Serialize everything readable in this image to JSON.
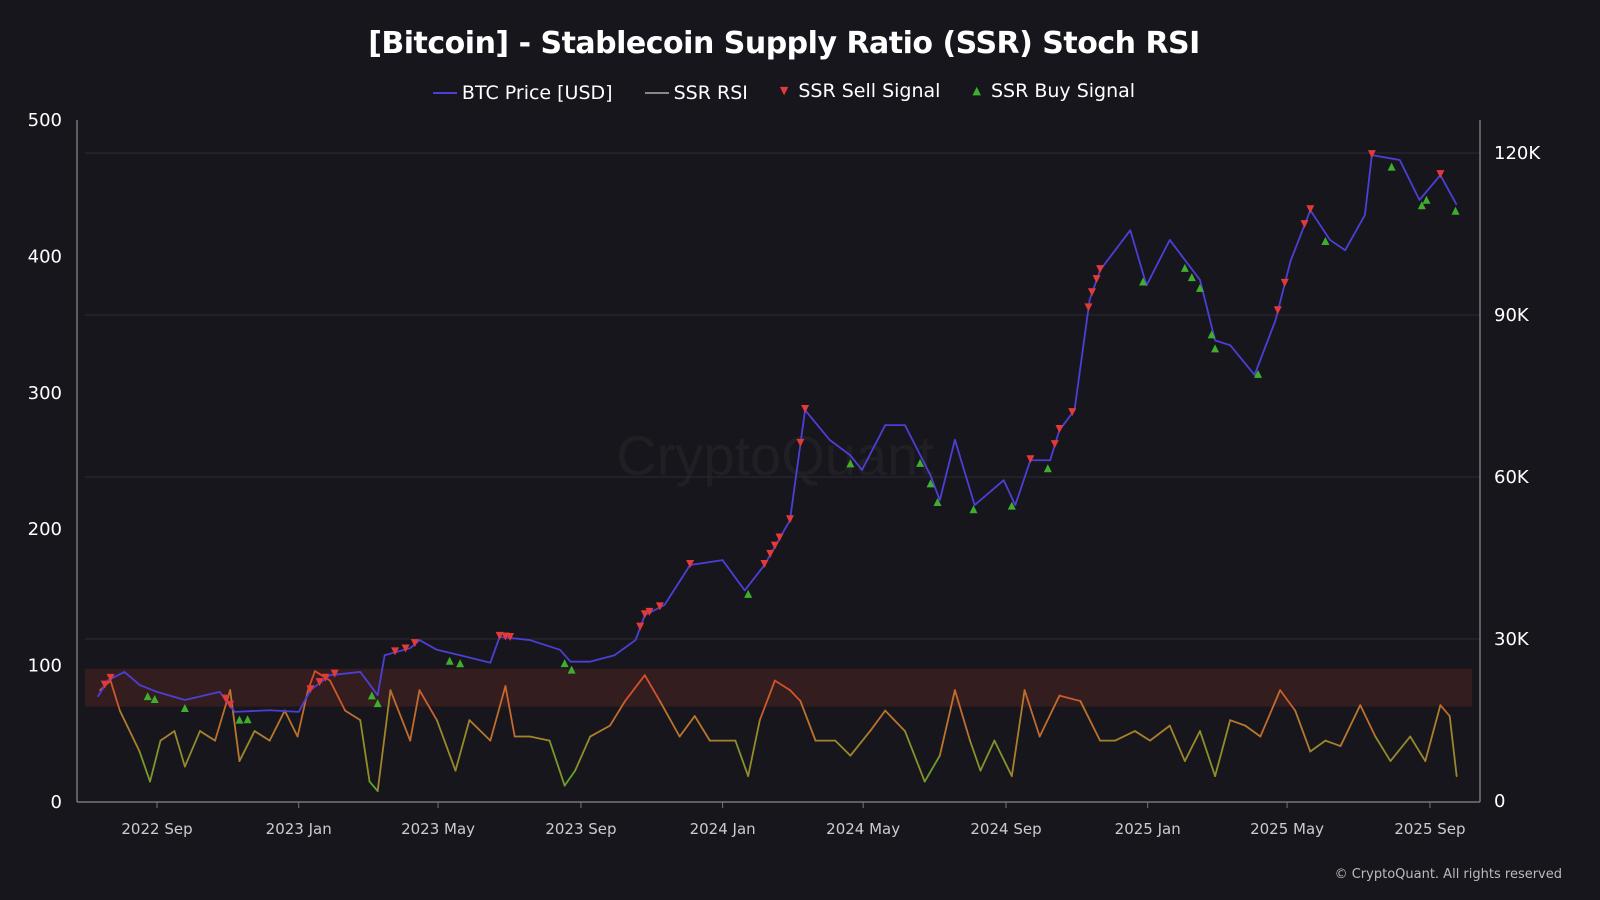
{
  "chart_data": {
    "type": "line",
    "title": "[Bitcoin] - Stablecoin Supply Ratio (SSR) Stoch RSI",
    "legend": [
      "BTC Price [USD]",
      "SSR RSI",
      "SSR Sell Signal",
      "SSR Buy Signal"
    ],
    "legend_placement": "top-center",
    "grid": "horizontal",
    "x_ticks": [
      "2022 Sep",
      "2023 Jan",
      "2023 May",
      "2023 Sep",
      "2024 Jan",
      "2024 May",
      "2024 Sep",
      "2025 Jan",
      "2025 May",
      "2025 Sep"
    ],
    "x_tick_dates": [
      "2022-09-01",
      "2023-01-01",
      "2023-05-01",
      "2023-09-01",
      "2024-01-01",
      "2024-05-01",
      "2024-09-01",
      "2025-01-01",
      "2025-05-01",
      "2025-09-01"
    ],
    "left_axis": {
      "ylim": [
        0,
        500
      ],
      "ticks": [
        "0",
        "100",
        "200",
        "300",
        "400",
        "500"
      ]
    },
    "right_axis": {
      "ylim": [
        0,
        126000
      ],
      "ticks": [
        "0",
        "30K",
        "60K",
        "90K",
        "120K"
      ],
      "tick_values": [
        0,
        30000,
        60000,
        90000,
        120000
      ]
    },
    "overbought_band": [
      70,
      100
    ],
    "colors": {
      "btc": "#4b3fd6",
      "rsi_high": "#e0402a",
      "rsi_mid": "#b9782c",
      "rsi_low": "#4fae2a",
      "sell": "#e23a3a",
      "buy": "#3fae2f",
      "band": "#3a1f20"
    },
    "series": [
      {
        "name": "BTC Price [USD]",
        "axis": "right",
        "dates": [
          "2022-07-12",
          "2022-07-21",
          "2022-08-04",
          "2022-08-17",
          "2022-09-01",
          "2022-09-25",
          "2022-10-25",
          "2022-11-07",
          "2022-12-07",
          "2023-01-01",
          "2023-01-11",
          "2023-01-28",
          "2023-02-23",
          "2023-03-10",
          "2023-03-16",
          "2023-04-07",
          "2023-04-15",
          "2023-04-30",
          "2023-05-20",
          "2023-06-15",
          "2023-06-23",
          "2023-07-19",
          "2023-08-14",
          "2023-08-23",
          "2023-09-09",
          "2023-09-30",
          "2023-10-18",
          "2023-10-26",
          "2023-11-12",
          "2023-12-04",
          "2024-01-01",
          "2024-01-20",
          "2024-02-06",
          "2024-02-28",
          "2024-03-12",
          "2024-04-02",
          "2024-04-20",
          "2024-04-30",
          "2024-05-20",
          "2024-06-06",
          "2024-06-28",
          "2024-07-06",
          "2024-07-19",
          "2024-08-05",
          "2024-08-30",
          "2024-09-09",
          "2024-09-22",
          "2024-10-09",
          "2024-10-17",
          "2024-10-30",
          "2024-11-12",
          "2024-11-21",
          "2024-12-17",
          "2024-12-31",
          "2025-01-20",
          "2025-02-15",
          "2025-02-28",
          "2025-03-13",
          "2025-04-03",
          "2025-04-21",
          "2025-05-04",
          "2025-05-21",
          "2025-06-07",
          "2025-06-20",
          "2025-07-07",
          "2025-07-13",
          "2025-08-06",
          "2025-08-23",
          "2025-09-10",
          "2025-09-24"
        ],
        "values": [
          19300,
          22400,
          23900,
          21500,
          20200,
          18700,
          20200,
          16500,
          16800,
          16500,
          20500,
          23300,
          23900,
          19600,
          27000,
          28300,
          29800,
          28000,
          27000,
          25600,
          30400,
          29800,
          28000,
          25800,
          25800,
          27000,
          29800,
          34400,
          36300,
          43700,
          44600,
          39000,
          43700,
          52000,
          72400,
          66900,
          64000,
          61300,
          69600,
          69600,
          60300,
          55700,
          66900,
          54800,
          59400,
          54800,
          63100,
          63100,
          68700,
          72400,
          92800,
          98300,
          105700,
          95500,
          103900,
          96500,
          85300,
          84400,
          78900,
          89000,
          100000,
          109400,
          103900,
          102000,
          108500,
          119600,
          118700,
          111300,
          115900,
          110400
        ]
      },
      {
        "name": "SSR RSI",
        "axis": "left",
        "dates": [
          "2022-07-14",
          "2022-07-23",
          "2022-07-31",
          "2022-08-17",
          "2022-08-26",
          "2022-09-04",
          "2022-09-16",
          "2022-09-25",
          "2022-10-08",
          "2022-10-21",
          "2022-11-03",
          "2022-11-11",
          "2022-11-24",
          "2022-12-07",
          "2022-12-20",
          "2022-12-31",
          "2023-01-09",
          "2023-01-15",
          "2023-01-28",
          "2023-02-10",
          "2023-02-23",
          "2023-03-03",
          "2023-03-10",
          "2023-03-21",
          "2023-04-07",
          "2023-04-15",
          "2023-04-30",
          "2023-05-16",
          "2023-05-28",
          "2023-06-15",
          "2023-06-28",
          "2023-07-06",
          "2023-07-19",
          "2023-08-05",
          "2023-08-18",
          "2023-08-27",
          "2023-09-09",
          "2023-09-26",
          "2023-10-09",
          "2023-10-26",
          "2023-11-08",
          "2023-11-25",
          "2023-12-08",
          "2023-12-21",
          "2024-01-12",
          "2024-01-23",
          "2024-02-02",
          "2024-02-15",
          "2024-02-28",
          "2024-03-08",
          "2024-03-21",
          "2024-04-07",
          "2024-04-20",
          "2024-05-07",
          "2024-05-20",
          "2024-06-06",
          "2024-06-23",
          "2024-07-06",
          "2024-07-19",
          "2024-08-01",
          "2024-08-10",
          "2024-08-22",
          "2024-09-06",
          "2024-09-17",
          "2024-09-30",
          "2024-10-17",
          "2024-11-04",
          "2024-11-21",
          "2024-12-04",
          "2024-12-21",
          "2025-01-03",
          "2025-01-20",
          "2025-02-02",
          "2025-02-15",
          "2025-02-28",
          "2025-03-13",
          "2025-03-26",
          "2025-04-08",
          "2025-04-25",
          "2025-05-08",
          "2025-05-21",
          "2025-06-03",
          "2025-06-16",
          "2025-07-03",
          "2025-07-16",
          "2025-07-29",
          "2025-08-15",
          "2025-08-28",
          "2025-09-10",
          "2025-09-18",
          "2025-09-24"
        ],
        "values": [
          82,
          89,
          67,
          37,
          15,
          45,
          52,
          26,
          52,
          45,
          82,
          30,
          52,
          45,
          67,
          48,
          82,
          96,
          89,
          67,
          60,
          15,
          8,
          82,
          45,
          82,
          60,
          23,
          60,
          45,
          85,
          48,
          48,
          45,
          12,
          23,
          48,
          56,
          74,
          93,
          74,
          48,
          63,
          45,
          45,
          19,
          60,
          89,
          82,
          74,
          45,
          45,
          34,
          52,
          67,
          52,
          15,
          34,
          82,
          45,
          23,
          45,
          19,
          82,
          48,
          78,
          74,
          45,
          45,
          52,
          45,
          56,
          30,
          52,
          19,
          60,
          56,
          48,
          82,
          67,
          37,
          45,
          41,
          71,
          48,
          30,
          48,
          30,
          71,
          63,
          19
        ]
      },
      {
        "name": "SSR Sell Signal",
        "dates": [
          "2022-07-18",
          "2022-07-23",
          "2022-10-30",
          "2022-11-03",
          "2023-01-11",
          "2023-01-19",
          "2023-01-24",
          "2023-02-01",
          "2023-03-25",
          "2023-04-03",
          "2023-04-11",
          "2023-06-23",
          "2023-06-28",
          "2023-07-02",
          "2023-10-22",
          "2023-10-26",
          "2023-10-30",
          "2023-11-08",
          "2023-12-04",
          "2024-02-06",
          "2024-02-11",
          "2024-02-15",
          "2024-02-19",
          "2024-02-28",
          "2024-03-08",
          "2024-03-12",
          "2024-09-22",
          "2024-10-13",
          "2024-10-17",
          "2024-10-28",
          "2024-11-11",
          "2024-11-14",
          "2024-11-18",
          "2024-11-21",
          "2025-04-23",
          "2025-04-29",
          "2025-05-16",
          "2025-05-21",
          "2025-07-13",
          "2025-09-10"
        ]
      },
      {
        "name": "SSR Buy Signal",
        "dates": [
          "2022-08-24",
          "2022-08-30",
          "2022-09-25",
          "2022-11-11",
          "2022-11-18",
          "2023-03-05",
          "2023-03-10",
          "2023-05-11",
          "2023-05-20",
          "2023-08-18",
          "2023-08-24",
          "2024-01-23",
          "2024-04-20",
          "2024-06-19",
          "2024-06-28",
          "2024-07-04",
          "2024-08-04",
          "2024-09-06",
          "2024-10-07",
          "2024-12-28",
          "2025-02-02",
          "2025-02-08",
          "2025-02-15",
          "2025-02-25",
          "2025-02-28",
          "2025-04-06",
          "2025-06-03",
          "2025-07-30",
          "2025-08-25",
          "2025-08-29",
          "2025-09-23"
        ]
      }
    ]
  },
  "watermark": "CryptoQuant",
  "footer": "© CryptoQuant. All rights reserved"
}
